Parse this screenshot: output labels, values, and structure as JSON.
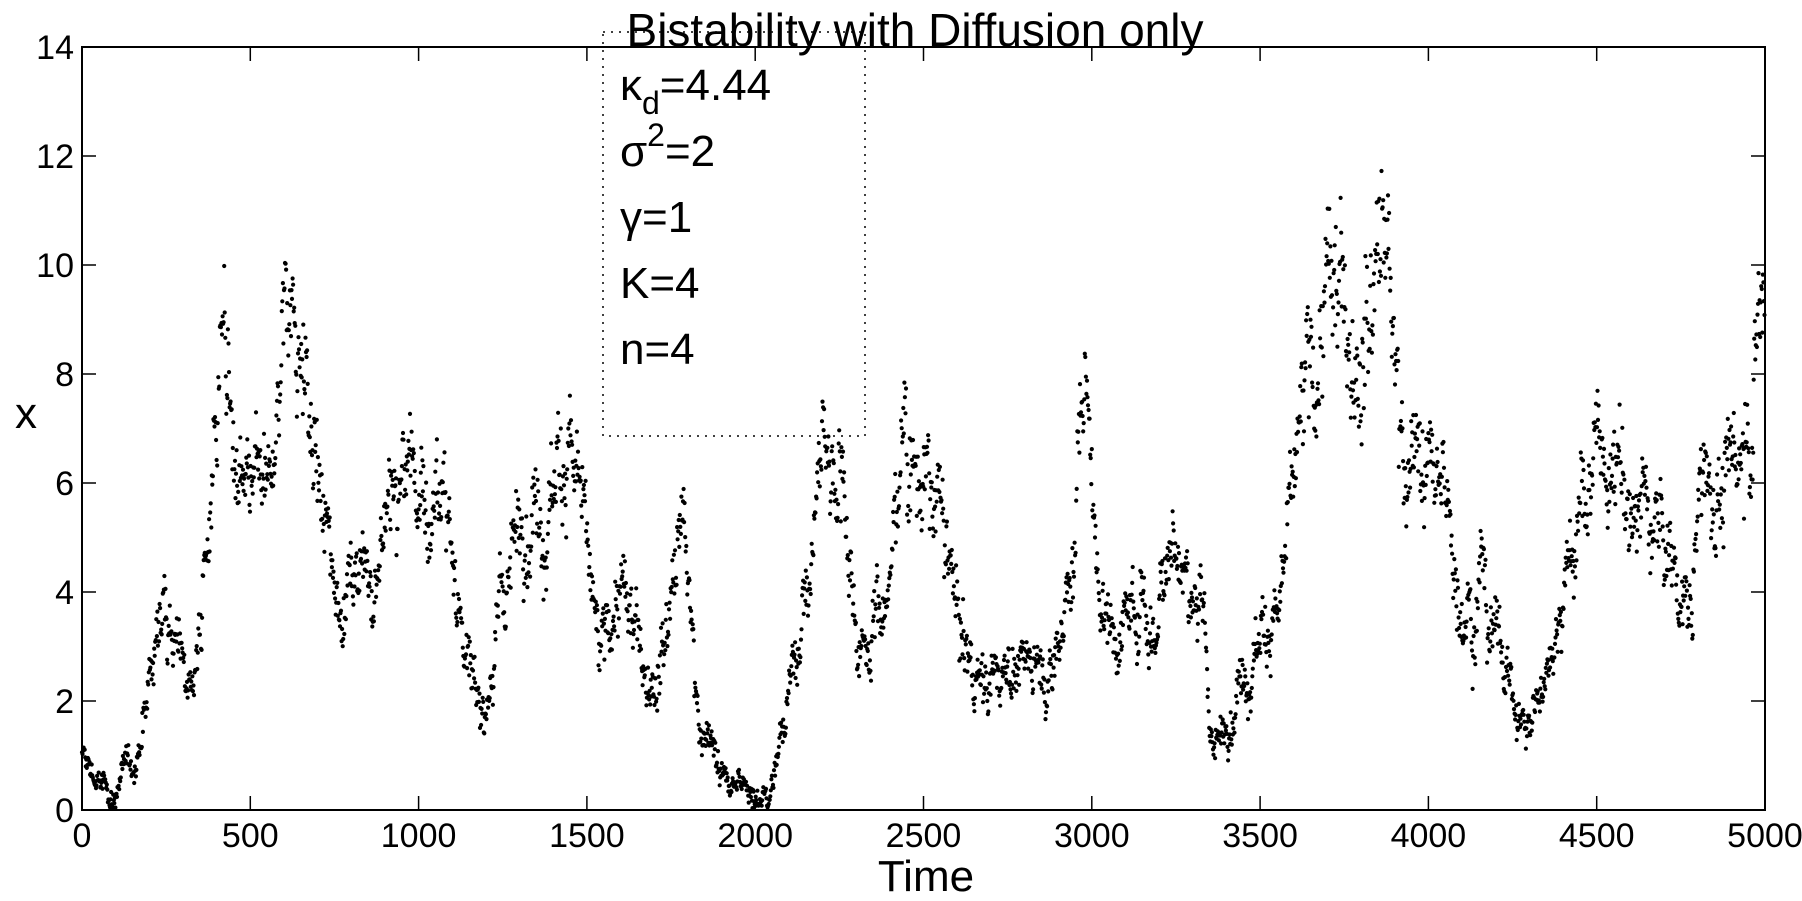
{
  "chart_data": {
    "type": "scatter",
    "title": "Bistability with Diffusion only",
    "xlabel": "Time",
    "ylabel": "x",
    "xlim": [
      0,
      5000
    ],
    "ylim": [
      0,
      14
    ],
    "xticks": [
      "0",
      "500",
      "1000",
      "1500",
      "2000",
      "2500",
      "3000",
      "3500",
      "4000",
      "4500",
      "5000"
    ],
    "yticks": [
      "0",
      "2",
      "4",
      "6",
      "8",
      "10",
      "12",
      "14"
    ],
    "grid": false,
    "marker_color": "#000000",
    "legend": {
      "placement": "top-center",
      "style": "dotted-box",
      "entries": [
        {
          "base": "κ",
          "sub": "d",
          "sup": "",
          "rest": "=4.44"
        },
        {
          "base": "σ",
          "sub": "",
          "sup": "2",
          "rest": "=2"
        },
        {
          "base": "γ",
          "sub": "",
          "sup": "",
          "rest": "=1"
        },
        {
          "base": "K",
          "sub": "",
          "sup": "",
          "rest": "=4"
        },
        {
          "base": "n",
          "sub": "",
          "sup": "",
          "rest": "=4"
        }
      ]
    },
    "trend": {
      "x": [
        0,
        40,
        80,
        120,
        150,
        200,
        250,
        280,
        330,
        380,
        420,
        460,
        520,
        560,
        600,
        640,
        690,
        740,
        800,
        860,
        920,
        980,
        1040,
        1080,
        1130,
        1180,
        1220,
        1280,
        1340,
        1400,
        1450,
        1490,
        1540,
        1580,
        1630,
        1680,
        1720,
        1780,
        1830,
        1880,
        1920,
        1980,
        2030,
        2080,
        2120,
        2160,
        2200,
        2260,
        2300,
        2350,
        2400,
        2440,
        2480,
        2540,
        2600,
        2650,
        2700,
        2760,
        2820,
        2880,
        2940,
        2980,
        3020,
        3080,
        3140,
        3190,
        3230,
        3270,
        3320,
        3360,
        3400,
        3460,
        3520,
        3570,
        3620,
        3680,
        3720,
        3780,
        3820,
        3860,
        3900,
        3940,
        3980,
        4020,
        4060,
        4100,
        4160,
        4200,
        4260,
        4290,
        4340,
        4400,
        4450,
        4500,
        4540,
        4580,
        4630,
        4680,
        4730,
        4780,
        4820,
        4860,
        4920,
        4960,
        5000
      ],
      "y": [
        0.9,
        0.6,
        0.2,
        0.6,
        0.8,
        2.5,
        3.9,
        3.2,
        2.3,
        5.5,
        9.2,
        5.2,
        5.5,
        5.6,
        8.6,
        8.8,
        6.5,
        4.7,
        4.0,
        4.7,
        5.4,
        5.5,
        5.6,
        5.8,
        3.5,
        1.9,
        2.5,
        5.0,
        5.6,
        6.3,
        7.2,
        4.8,
        2.4,
        3.8,
        3.4,
        2.8,
        3.2,
        5.5,
        2.0,
        1.0,
        0.3,
        0.5,
        0.4,
        1.5,
        2.8,
        4.5,
        6.8,
        6.6,
        3.2,
        3.8,
        4.0,
        7.3,
        6.5,
        5.5,
        3.5,
        2.6,
        2.3,
        2.8,
        2.7,
        2.8,
        4.5,
        8.4,
        4.0,
        3.3,
        4.0,
        3.2,
        5.8,
        4.5,
        3.7,
        1.2,
        1.5,
        2.9,
        3.6,
        4.0,
        6.5,
        8.5,
        9.2,
        9.5,
        9.9,
        11.5,
        8.0,
        7.0,
        6.2,
        5.8,
        5.5,
        4.0,
        4.5,
        3.3,
        2.0,
        1.3,
        2.3,
        4.6,
        5.3,
        6.8,
        5.7,
        5.7,
        5.5,
        5.4,
        4.3,
        3.5,
        6.4,
        5.8,
        6.0,
        8.0,
        9.3
      ]
    }
  }
}
